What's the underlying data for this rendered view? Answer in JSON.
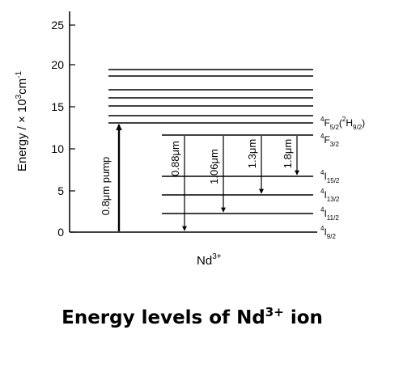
{
  "caption": {
    "text": "Energy levels of Nd",
    "sup": "3+",
    "suffix": " ion"
  },
  "axis": {
    "ylabel_main": "Energy / × 10",
    "ylabel_exp": "3",
    "ylabel_unit": "cm",
    "ylabel_unit_exp": "-1",
    "ticks": [
      "0",
      "5",
      "10",
      "15",
      "20",
      "25"
    ],
    "xlabel": "Nd",
    "xlabel_sup": "3+"
  },
  "levels": {
    "ground": {
      "sup": "4",
      "main": "I",
      "sub": "9/2"
    },
    "i11": {
      "sup": "4",
      "main": "I",
      "sub": "11/2"
    },
    "i13": {
      "sup": "4",
      "main": "I",
      "sub": "13/2"
    },
    "i15": {
      "sup": "4",
      "main": "I",
      "sub": "15/2"
    },
    "f32": {
      "sup": "4",
      "main": "F",
      "sub": "3/2"
    },
    "f52": {
      "sup": "4",
      "main": "F",
      "sub": "5/2",
      "extra_sup": "2",
      "extra_main": "H",
      "extra_sub": "9/2"
    }
  },
  "transitions": {
    "pump": "0.8μm pump",
    "t088": "0.88μm",
    "t106": "1.06μm",
    "t13": "1.3μm",
    "t18": "1.8μm"
  }
}
